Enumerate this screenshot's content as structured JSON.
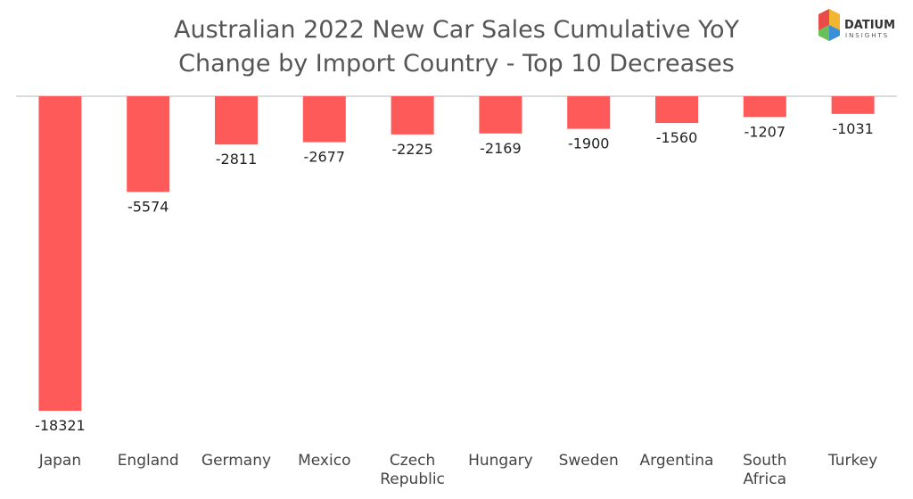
{
  "logo": {
    "name": "DATIUM",
    "sub": "INSIGHTS"
  },
  "chart_data": {
    "type": "bar",
    "title": "Australian 2022 New Car Sales Cumulative YoY Change by Import Country - Top 10 Decreases",
    "title_lines": [
      "Australian 2022 New Car Sales Cumulative YoY",
      "Change by Import Country - Top 10 Decreases"
    ],
    "categories": [
      "Japan",
      "England",
      "Germany",
      "Mexico",
      "Czech Republic",
      "Hungary",
      "Sweden",
      "Argentina",
      "South Africa",
      "Turkey"
    ],
    "values": [
      -18321,
      -5574,
      -2811,
      -2677,
      -2225,
      -2169,
      -1900,
      -1560,
      -1207,
      -1031
    ],
    "value_labels": [
      "-18321",
      "-5574",
      "-2811",
      "-2677",
      "-2225",
      "-2169",
      "-1900",
      "-1560",
      "-1207",
      "-1031"
    ],
    "bar_color": "#ff5a5a",
    "ylim": [
      -18321,
      0
    ],
    "grid": false,
    "legend": "none",
    "xlabel": "",
    "ylabel": ""
  }
}
